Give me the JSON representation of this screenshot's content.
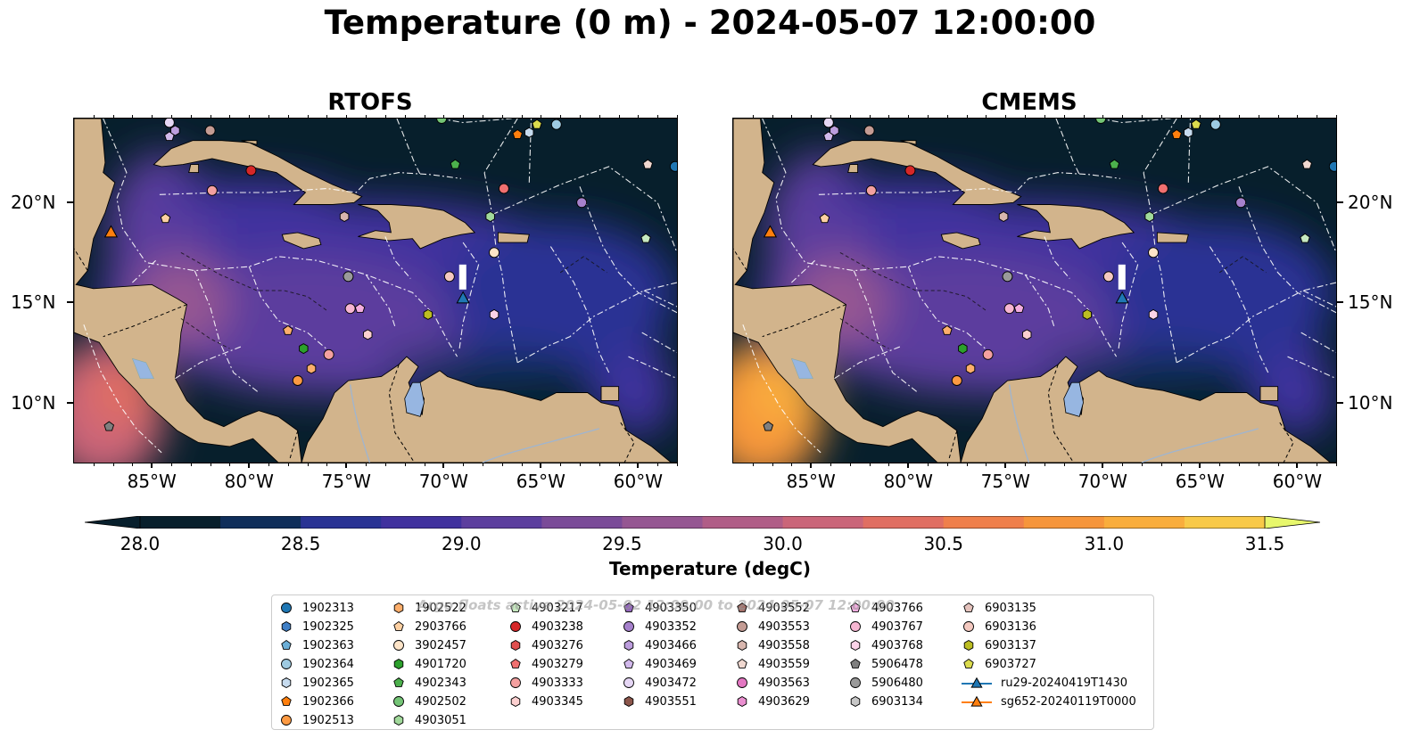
{
  "title": "Temperature (0 m) - 2024-05-07 12:00:00",
  "panels": [
    {
      "title": "RTOFS"
    },
    {
      "title": "CMEMS"
    }
  ],
  "axes": {
    "lon_ticks": [
      "85°W",
      "80°W",
      "75°W",
      "70°W",
      "65°W",
      "60°W"
    ],
    "lat_ticks": [
      "20°N",
      "15°N",
      "10°N"
    ],
    "lon_range": [
      -89.0,
      -58.0
    ],
    "lat_range": [
      7.0,
      24.2
    ]
  },
  "colorbar": {
    "label": "Temperature (degC)",
    "ticks": [
      "28.0",
      "28.5",
      "29.0",
      "29.5",
      "30.0",
      "30.5",
      "31.0",
      "31.5"
    ],
    "range": [
      28.0,
      31.5
    ],
    "colors": [
      "#071f2c",
      "#0f2e5a",
      "#293394",
      "#40319e",
      "#5c3e9e",
      "#7a4b98",
      "#955692",
      "#b05d87",
      "#ca6579",
      "#e06e62",
      "#ef7f4b",
      "#f6953b",
      "#f9ad3c",
      "#f8c948",
      "#e7f76c"
    ]
  },
  "watermark": "Argo floats active 2024-05-02 12:00:00 to 2024-05-07 12:00:00",
  "legend": [
    {
      "label": "1902313",
      "marker": "circle",
      "color": "#1f77b4"
    },
    {
      "label": "1902325",
      "marker": "hexagon",
      "color": "#3f7fc6"
    },
    {
      "label": "1902363",
      "marker": "pentagon",
      "color": "#6baed6"
    },
    {
      "label": "1902364",
      "marker": "circle",
      "color": "#9ecae1"
    },
    {
      "label": "1902365",
      "marker": "hexagon",
      "color": "#c6dbef"
    },
    {
      "label": "1902366",
      "marker": "pentagon",
      "color": "#ff7f0e"
    },
    {
      "label": "1902513",
      "marker": "circle",
      "color": "#fd9a42"
    },
    {
      "label": "1902522",
      "marker": "hexagon",
      "color": "#fdae6b"
    },
    {
      "label": "2903766",
      "marker": "pentagon",
      "color": "#fdd0a2"
    },
    {
      "label": "3902457",
      "marker": "circle",
      "color": "#fde4c8"
    },
    {
      "label": "4901720",
      "marker": "hexagon",
      "color": "#2ca02c"
    },
    {
      "label": "4902343",
      "marker": "pentagon",
      "color": "#4cb04c"
    },
    {
      "label": "4902502",
      "marker": "circle",
      "color": "#74c476"
    },
    {
      "label": "4903051",
      "marker": "hexagon",
      "color": "#a1d99b"
    },
    {
      "label": "4903217",
      "marker": "pentagon",
      "color": "#c7e9c0"
    },
    {
      "label": "4903238",
      "marker": "circle",
      "color": "#d62728"
    },
    {
      "label": "4903276",
      "marker": "hexagon",
      "color": "#e04f4f"
    },
    {
      "label": "4903279",
      "marker": "pentagon",
      "color": "#f07070"
    },
    {
      "label": "4903333",
      "marker": "circle",
      "color": "#f4a0a0"
    },
    {
      "label": "4903345",
      "marker": "hexagon",
      "color": "#fcd0d0"
    },
    {
      "label": "4903350",
      "marker": "pentagon",
      "color": "#9467bd"
    },
    {
      "label": "4903352",
      "marker": "circle",
      "color": "#a681cc"
    },
    {
      "label": "4903466",
      "marker": "hexagon",
      "color": "#bc9ddd"
    },
    {
      "label": "4903469",
      "marker": "pentagon",
      "color": "#d2b9ec"
    },
    {
      "label": "4903472",
      "marker": "circle",
      "color": "#e6d7f5"
    },
    {
      "label": "4903551",
      "marker": "hexagon",
      "color": "#8c564b"
    },
    {
      "label": "4903552",
      "marker": "pentagon",
      "color": "#a5716a"
    },
    {
      "label": "4903553",
      "marker": "circle",
      "color": "#c49c94"
    },
    {
      "label": "4903558",
      "marker": "hexagon",
      "color": "#d8b6ae"
    },
    {
      "label": "4903559",
      "marker": "pentagon",
      "color": "#f0d8d0"
    },
    {
      "label": "4903563",
      "marker": "circle",
      "color": "#e377c2"
    },
    {
      "label": "4903629",
      "marker": "hexagon",
      "color": "#ea8fd0"
    },
    {
      "label": "4903766",
      "marker": "pentagon",
      "color": "#f4aee0"
    },
    {
      "label": "4903767",
      "marker": "circle",
      "color": "#f7b6d2"
    },
    {
      "label": "4903768",
      "marker": "hexagon",
      "color": "#fbd3e8"
    },
    {
      "label": "5906478",
      "marker": "pentagon",
      "color": "#7f7f7f"
    },
    {
      "label": "5906480",
      "marker": "circle",
      "color": "#9a9a9a"
    },
    {
      "label": "6903134",
      "marker": "hexagon",
      "color": "#c7c7c7"
    },
    {
      "label": "6903135",
      "marker": "pentagon",
      "color": "#e5c3bd"
    },
    {
      "label": "6903136",
      "marker": "circle",
      "color": "#f4c9c0"
    },
    {
      "label": "6903137",
      "marker": "hexagon",
      "color": "#bcbd22"
    },
    {
      "label": "6903727",
      "marker": "pentagon",
      "color": "#dbdb4d"
    },
    {
      "label": "ru29-20240419T1430",
      "marker": "glider",
      "color": "#1f77b4"
    },
    {
      "label": "sg652-20240119T0000",
      "marker": "glider",
      "color": "#ff7f0e"
    }
  ],
  "floats": [
    {
      "lon": -84.1,
      "lat": 24.0,
      "color": "#e6d7f5",
      "marker": "circle"
    },
    {
      "lon": -83.8,
      "lat": 23.6,
      "color": "#bc9ddd",
      "marker": "hexagon"
    },
    {
      "lon": -84.1,
      "lat": 23.3,
      "color": "#d2b9ec",
      "marker": "pentagon"
    },
    {
      "lon": -82.0,
      "lat": 23.6,
      "color": "#c49c94",
      "marker": "circle"
    },
    {
      "lon": -70.1,
      "lat": 24.2,
      "color": "#74c476",
      "marker": "circle"
    },
    {
      "lon": -66.2,
      "lat": 23.4,
      "color": "#ff7f0e",
      "marker": "pentagon"
    },
    {
      "lon": -65.6,
      "lat": 23.5,
      "color": "#c6dbef",
      "marker": "hexagon"
    },
    {
      "lon": -65.2,
      "lat": 23.9,
      "color": "#dbdb4d",
      "marker": "pentagon"
    },
    {
      "lon": -64.2,
      "lat": 23.9,
      "color": "#9ecae1",
      "marker": "circle"
    },
    {
      "lon": -79.9,
      "lat": 21.6,
      "color": "#d62728",
      "marker": "circle"
    },
    {
      "lon": -69.4,
      "lat": 21.9,
      "color": "#4cb04c",
      "marker": "pentagon"
    },
    {
      "lon": -59.5,
      "lat": 21.9,
      "color": "#f0d8d0",
      "marker": "pentagon"
    },
    {
      "lon": -58.1,
      "lat": 21.8,
      "color": "#1f77b4",
      "marker": "circle"
    },
    {
      "lon": -81.9,
      "lat": 20.6,
      "color": "#f4a0a0",
      "marker": "circle"
    },
    {
      "lon": -66.9,
      "lat": 20.7,
      "color": "#f07070",
      "marker": "circle"
    },
    {
      "lon": -62.9,
      "lat": 20.0,
      "color": "#a681cc",
      "marker": "circle"
    },
    {
      "lon": -84.3,
      "lat": 19.2,
      "color": "#fdd0a2",
      "marker": "pentagon"
    },
    {
      "lon": -75.1,
      "lat": 19.3,
      "color": "#d8b6ae",
      "marker": "hexagon"
    },
    {
      "lon": -67.6,
      "lat": 19.3,
      "color": "#a1d99b",
      "marker": "hexagon"
    },
    {
      "lon": -59.6,
      "lat": 18.2,
      "color": "#c7e9c0",
      "marker": "pentagon"
    },
    {
      "lon": -67.4,
      "lat": 17.5,
      "color": "#fde4c8",
      "marker": "circle"
    },
    {
      "lon": -74.9,
      "lat": 16.3,
      "color": "#9a9a9a",
      "marker": "circle"
    },
    {
      "lon": -69.7,
      "lat": 16.3,
      "color": "#f4c9c0",
      "marker": "circle"
    },
    {
      "lon": -74.8,
      "lat": 14.7,
      "color": "#f7b6d2",
      "marker": "circle"
    },
    {
      "lon": -74.3,
      "lat": 14.7,
      "color": "#f4aee0",
      "marker": "pentagon"
    },
    {
      "lon": -70.8,
      "lat": 14.4,
      "color": "#bcbd22",
      "marker": "hexagon"
    },
    {
      "lon": -67.4,
      "lat": 14.4,
      "color": "#fbd3e8",
      "marker": "hexagon"
    },
    {
      "lon": -78.0,
      "lat": 13.6,
      "color": "#fdae6b",
      "marker": "pentagon"
    },
    {
      "lon": -73.9,
      "lat": 13.4,
      "color": "#fcd0d0",
      "marker": "hexagon"
    },
    {
      "lon": -77.2,
      "lat": 12.7,
      "color": "#2ca02c",
      "marker": "hexagon"
    },
    {
      "lon": -75.9,
      "lat": 12.4,
      "color": "#f4a0a0",
      "marker": "circle"
    },
    {
      "lon": -76.8,
      "lat": 11.7,
      "color": "#fdae6b",
      "marker": "hexagon"
    },
    {
      "lon": -77.5,
      "lat": 11.1,
      "color": "#fd9a42",
      "marker": "circle"
    },
    {
      "lon": -87.2,
      "lat": 8.8,
      "color": "#7f7f7f",
      "marker": "pentagon"
    }
  ],
  "gliders": [
    {
      "label": "ru29-20240419T1430",
      "lon": -69.0,
      "lat": 15.2,
      "color": "#1f77b4"
    },
    {
      "label": "sg652-20240119T0000",
      "lon": -87.1,
      "lat": 18.5,
      "color": "#ff7f0e"
    }
  ]
}
